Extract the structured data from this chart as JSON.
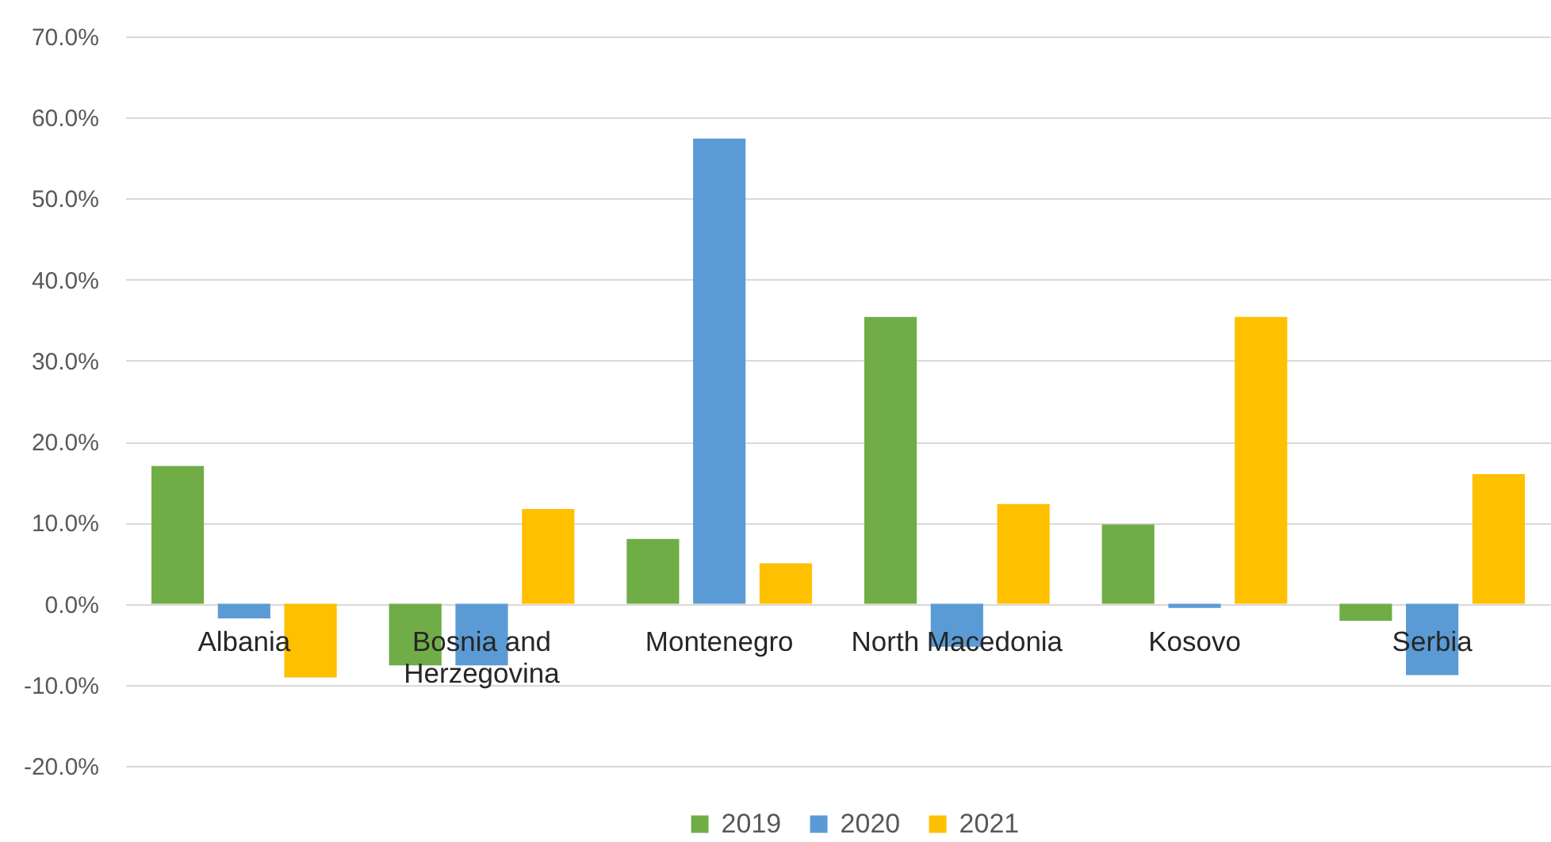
{
  "chart_data": {
    "type": "bar",
    "categories": [
      "Albania",
      "Bosnia and Herzegovina",
      "Montenegro",
      "North Macedonia",
      "Kosovo",
      "Serbia"
    ],
    "series": [
      {
        "name": "2019",
        "color": "#70ad47",
        "values": [
          17.0,
          -7.6,
          8.0,
          35.4,
          9.8,
          -2.1
        ]
      },
      {
        "name": "2020",
        "color": "#5b9bd5",
        "values": [
          -1.8,
          -7.6,
          57.4,
          -5.3,
          -0.5,
          -8.8
        ]
      },
      {
        "name": "2021",
        "color": "#ffc000",
        "values": [
          -9.1,
          11.7,
          5.0,
          12.3,
          35.4,
          16.0
        ]
      }
    ],
    "ylim": [
      -20,
      70
    ],
    "yticks": [
      {
        "value": -20,
        "label": "-20.0%"
      },
      {
        "value": -10,
        "label": "-10.0%"
      },
      {
        "value": 0,
        "label": "0.0%"
      },
      {
        "value": 10,
        "label": "10.0%"
      },
      {
        "value": 20,
        "label": "20.0%"
      },
      {
        "value": 30,
        "label": "30.0%"
      },
      {
        "value": 40,
        "label": "40.0%"
      },
      {
        "value": 50,
        "label": "50.0%"
      },
      {
        "value": 60,
        "label": "60.0%"
      },
      {
        "value": 70,
        "label": "70.0%"
      }
    ],
    "grid": "y",
    "legend": "bottom"
  }
}
